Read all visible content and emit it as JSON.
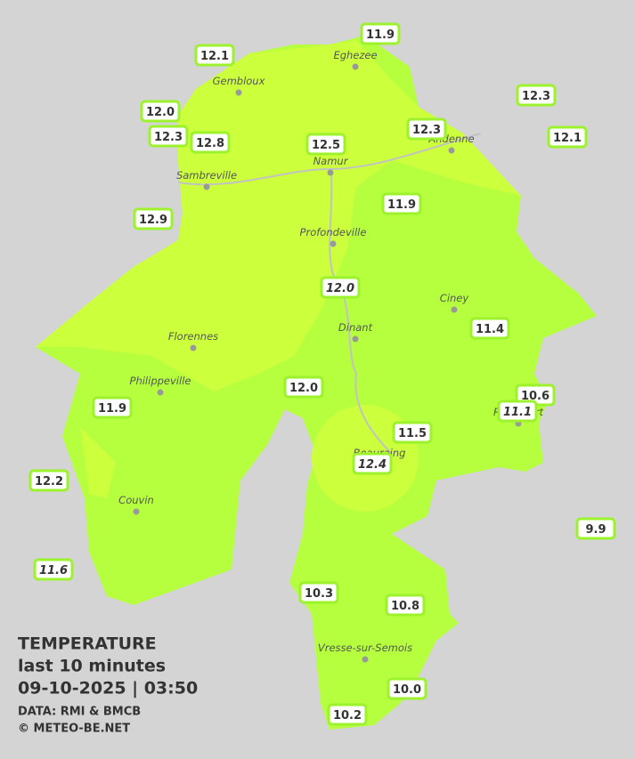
{
  "legend": {
    "title": "TEMPERATURE",
    "period": "last 10 minutes",
    "datetime": "09-10-2025  |  03:50",
    "source": "DATA: RMI & BMCB",
    "credit": "© METEO-BE.NET"
  },
  "cities": [
    "Eghezee",
    "Gembloux",
    "Andenne",
    "Namur",
    "Sambreville",
    "Profondeville",
    "Ciney",
    "Dinant",
    "Florennes",
    "Philippeville",
    "Rochefort",
    "Beauraing",
    "Couvin",
    "Vresse-sur-Semois"
  ],
  "stations": [
    {
      "label": "12.1"
    },
    {
      "label": "11.9"
    },
    {
      "label": "12.0"
    },
    {
      "label": "12.3"
    },
    {
      "label": "12.8"
    },
    {
      "label": "12.5"
    },
    {
      "label": "12.3"
    },
    {
      "label": "12.3"
    },
    {
      "label": "12.1"
    },
    {
      "label": "11.9"
    },
    {
      "label": "12.9"
    },
    {
      "label": "12.0",
      "italic": true
    },
    {
      "label": "11.4"
    },
    {
      "label": "12.0"
    },
    {
      "label": "10.6"
    },
    {
      "label": "11.9"
    },
    {
      "label": "11.5"
    },
    {
      "label": "12.4",
      "italic": true
    },
    {
      "label": "12.2"
    },
    {
      "label": "9.9"
    },
    {
      "label": "11.6",
      "italic": true
    },
    {
      "label": "10.3"
    },
    {
      "label": "10.8"
    },
    {
      "label": "10.0"
    },
    {
      "label": "10.2"
    },
    {
      "label": "11.1",
      "italic": true
    }
  ]
}
